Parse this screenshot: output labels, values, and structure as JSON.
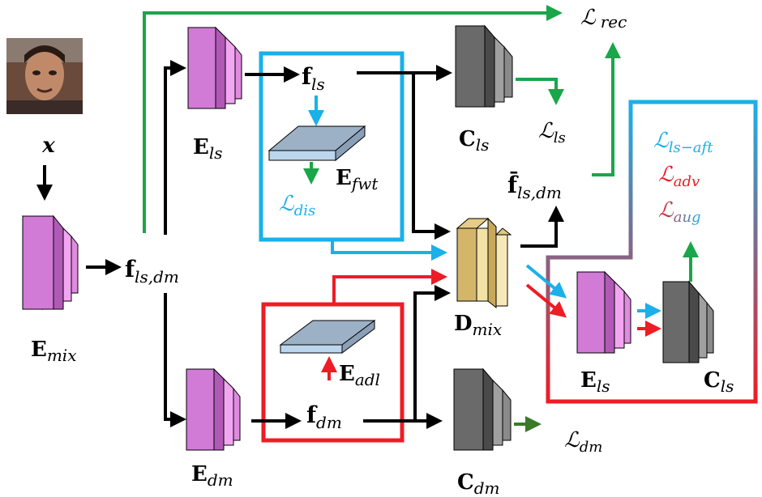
{
  "input": {
    "symbol": "x"
  },
  "encoders": {
    "mix": {
      "main": "E",
      "sub": "mix"
    },
    "ls": {
      "main": "E",
      "sub": "ls"
    },
    "dm": {
      "main": "E",
      "sub": "dm"
    },
    "fwt": {
      "main": "E",
      "sub": "fwt"
    },
    "adl": {
      "main": "E",
      "sub": "adl"
    },
    "ls_inner": {
      "main": "E",
      "sub": "ls"
    }
  },
  "features": {
    "f_ls_dm": {
      "main": "f",
      "sub": "ls,dm"
    },
    "f_ls": {
      "main": "f",
      "sub": "ls"
    },
    "f_dm": {
      "main": "f",
      "sub": "dm"
    },
    "f_bar_ls_dm": {
      "main": "f̄",
      "sub": "ls,dm"
    }
  },
  "classifiers": {
    "ls": {
      "main": "C",
      "sub": "ls"
    },
    "dm": {
      "main": "C",
      "sub": "dm"
    },
    "ls_inner": {
      "main": "C",
      "sub": "ls"
    }
  },
  "decoder": {
    "main": "D",
    "sub": "mix"
  },
  "losses": {
    "rec": {
      "main": "ℒ",
      "sub": "rec"
    },
    "ls": {
      "main": "ℒ",
      "sub": "ls"
    },
    "dm": {
      "main": "ℒ",
      "sub": "dm"
    },
    "dis": {
      "main": "ℒ",
      "sub": "dis"
    },
    "ls_aft": {
      "main": "ℒ",
      "sub": "ls−aft"
    },
    "adv": {
      "main": "ℒ",
      "sub": "adv"
    },
    "aug": {
      "main": "ℒ",
      "sub": "aug"
    }
  },
  "colors": {
    "green": "#1aa64a",
    "dark_green": "#3a7a2a",
    "blue": "#1ab0ea",
    "red": "#ee1c24",
    "purple": "#d17ad6",
    "pink": "#f2a6f2",
    "gray": "#8a8a8a",
    "tan": "#d8c080",
    "slab": "#9cb0c6"
  }
}
